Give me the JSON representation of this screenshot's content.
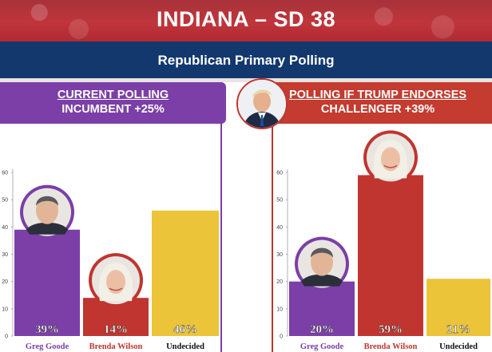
{
  "header": {
    "title": "INDIANA – SD 38",
    "subtitle": "Republican Primary Polling"
  },
  "colors": {
    "purple": "#7b3fa7",
    "red": "#c0352f",
    "yellow": "#ebc43a",
    "navy": "#12386e"
  },
  "chart_data": [
    {
      "type": "bar",
      "title": "CURRENT POLLING",
      "subtitle": "INCUMBENT +25%",
      "categories": [
        "Greg Goode",
        "Brenda Wilson",
        "Undecided"
      ],
      "values": [
        39,
        14,
        46
      ],
      "value_labels": [
        "39%",
        "14%",
        "46%"
      ],
      "bar_colors": [
        "#7b3fa7",
        "#c0352f",
        "#ebc43a"
      ],
      "label_colors": [
        "#7b3fa7",
        "#c0352f",
        "#111111"
      ],
      "ylim": [
        0,
        60
      ],
      "yticks": [
        0,
        10,
        20,
        30,
        40,
        50,
        60
      ],
      "xlabel": "",
      "ylabel": ""
    },
    {
      "type": "bar",
      "title": "POLLING IF TRUMP ENDORSES",
      "subtitle": "CHALLENGER +39%",
      "categories": [
        "Greg Goode",
        "Brenda Wilson",
        "Undecided"
      ],
      "values": [
        20,
        59,
        21
      ],
      "value_labels": [
        "20%",
        "59%",
        "21%"
      ],
      "bar_colors": [
        "#7b3fa7",
        "#c0352f",
        "#ebc43a"
      ],
      "label_colors": [
        "#7b3fa7",
        "#c0352f",
        "#111111"
      ],
      "ylim": [
        0,
        60
      ],
      "yticks": [
        0,
        10,
        20,
        30,
        40,
        50,
        60
      ],
      "xlabel": "",
      "ylabel": ""
    }
  ]
}
